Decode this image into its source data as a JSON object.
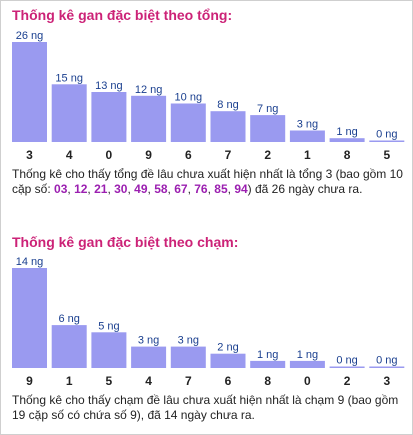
{
  "colors": {
    "title": "#cc2277",
    "bar": "#9a9af0",
    "bar_label": "#1a3f8f",
    "highlight": "#9b1fb0"
  },
  "sections": [
    {
      "title": "Thống kê gan đặc biệt theo tổng:",
      "desc_prefix": "Thống kê cho thấy tổng đề lâu chưa xuất hiện nhất là tổng 3 (bao gồm 10 cặp số: ",
      "desc_numbers": [
        "03",
        "12",
        "21",
        "30",
        "49",
        "58",
        "67",
        "76",
        "85",
        "94"
      ],
      "desc_suffix": ") đã 26 ngày chưa ra."
    },
    {
      "title": "Thống kê gan đặc biệt theo chạm:",
      "desc_prefix": "Thống kê cho thấy chạm đề lâu chưa xuất hiện nhất là chạm 9 (bao gồm 19 cặp số có chứa số 9), đã 14 ngày chưa ra.",
      "desc_numbers": [],
      "desc_suffix": ""
    }
  ],
  "chart_data": [
    {
      "type": "bar",
      "categories": [
        "3",
        "4",
        "0",
        "9",
        "6",
        "7",
        "2",
        "1",
        "8",
        "5"
      ],
      "values": [
        26,
        15,
        13,
        12,
        10,
        8,
        7,
        3,
        1,
        0
      ],
      "value_labels": [
        "26 ng",
        "15 ng",
        "13 ng",
        "12 ng",
        "10 ng",
        "8 ng",
        "7 ng",
        "3 ng",
        "1 ng",
        "0 ng"
      ],
      "title": "Thống kê gan đặc biệt theo tổng:",
      "xlabel": "",
      "ylabel": "",
      "ylim": [
        0,
        26
      ],
      "grid": false
    },
    {
      "type": "bar",
      "categories": [
        "9",
        "1",
        "5",
        "4",
        "7",
        "6",
        "8",
        "0",
        "2",
        "3"
      ],
      "values": [
        14,
        6,
        5,
        3,
        3,
        2,
        1,
        1,
        0,
        0
      ],
      "value_labels": [
        "14 ng",
        "6 ng",
        "5 ng",
        "3 ng",
        "3 ng",
        "2 ng",
        "1 ng",
        "1 ng",
        "0 ng",
        "0 ng"
      ],
      "title": "Thống kê gan đặc biệt theo chạm:",
      "xlabel": "",
      "ylabel": "",
      "ylim": [
        0,
        14
      ],
      "grid": false
    }
  ]
}
